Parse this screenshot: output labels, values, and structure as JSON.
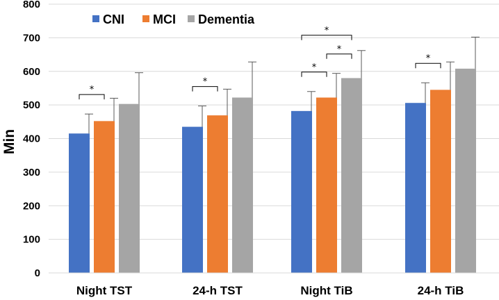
{
  "chart_data": {
    "type": "bar",
    "title": "",
    "xlabel": "",
    "ylabel": "Min",
    "ylim": [
      0,
      800
    ],
    "yticks": [
      0,
      100,
      200,
      300,
      400,
      500,
      600,
      700,
      800
    ],
    "ytick_labels": [
      "0",
      "100",
      "200",
      "300",
      "400",
      "500",
      "600",
      "700",
      "800"
    ],
    "categories": [
      "Night TST",
      "24-h TST",
      "Night TiB",
      "24-h TiB"
    ],
    "series": [
      {
        "name": "CNI",
        "color": "#4472C4",
        "values": [
          415,
          435,
          482,
          506
        ],
        "errors": [
          58,
          62,
          58,
          60
        ]
      },
      {
        "name": "MCI",
        "color": "#ED7D31",
        "values": [
          452,
          469,
          522,
          545
        ],
        "errors": [
          68,
          78,
          72,
          83
        ]
      },
      {
        "name": "Dementia",
        "color": "#A5A5A5",
        "values": [
          503,
          522,
          580,
          608
        ],
        "errors": [
          93,
          106,
          82,
          94
        ]
      }
    ],
    "legend_position": "top-left",
    "significance": [
      {
        "category": 0,
        "from": 0,
        "to": 1,
        "label": "*"
      },
      {
        "category": 1,
        "from": 0,
        "to": 1,
        "label": "*"
      },
      {
        "category": 2,
        "from": 0,
        "to": 1,
        "label": "*"
      },
      {
        "category": 2,
        "from": 1,
        "to": 2,
        "label": "*"
      },
      {
        "category": 2,
        "from": 0,
        "to": 2,
        "label": "*"
      },
      {
        "category": 3,
        "from": 0,
        "to": 1,
        "label": "*"
      }
    ]
  }
}
